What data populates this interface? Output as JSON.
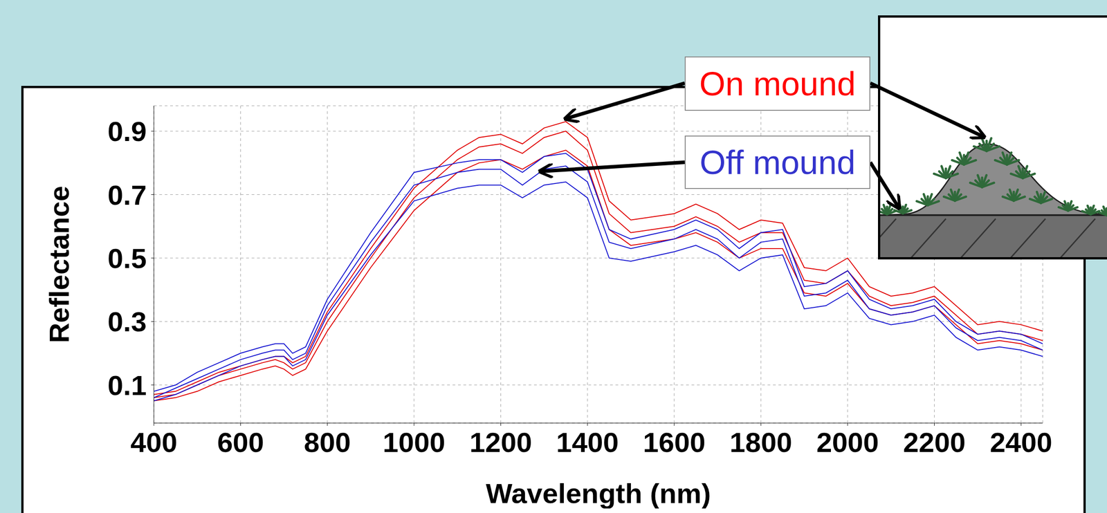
{
  "chart_data": {
    "type": "line",
    "xlabel": "Wavelength (nm)",
    "ylabel": "Reflectance",
    "x": [
      400,
      450,
      500,
      550,
      600,
      650,
      680,
      700,
      720,
      750,
      800,
      900,
      1000,
      1100,
      1150,
      1200,
      1250,
      1300,
      1350,
      1400,
      1450,
      1500,
      1600,
      1650,
      1700,
      1750,
      1800,
      1850,
      1900,
      1950,
      2000,
      2050,
      2100,
      2150,
      2200,
      2250,
      2300,
      2350,
      2400,
      2450
    ],
    "series": [
      {
        "name": "On mound",
        "color": "#e00000",
        "values": [
          0.07,
          0.08,
          0.11,
          0.14,
          0.16,
          0.18,
          0.19,
          0.19,
          0.17,
          0.19,
          0.33,
          0.53,
          0.72,
          0.84,
          0.88,
          0.89,
          0.86,
          0.91,
          0.93,
          0.88,
          0.68,
          0.62,
          0.64,
          0.67,
          0.64,
          0.59,
          0.62,
          0.61,
          0.47,
          0.46,
          0.5,
          0.41,
          0.38,
          0.39,
          0.41,
          0.35,
          0.29,
          0.3,
          0.29,
          0.27
        ]
      },
      {
        "name": "On mound",
        "color": "#e00000",
        "values": [
          0.06,
          0.07,
          0.1,
          0.13,
          0.15,
          0.17,
          0.18,
          0.17,
          0.15,
          0.17,
          0.3,
          0.5,
          0.69,
          0.81,
          0.85,
          0.86,
          0.83,
          0.88,
          0.9,
          0.84,
          0.64,
          0.58,
          0.6,
          0.63,
          0.6,
          0.55,
          0.58,
          0.58,
          0.43,
          0.42,
          0.46,
          0.38,
          0.35,
          0.36,
          0.38,
          0.32,
          0.26,
          0.27,
          0.26,
          0.24
        ]
      },
      {
        "name": "On mound",
        "color": "#e00000",
        "values": [
          0.05,
          0.06,
          0.08,
          0.11,
          0.13,
          0.15,
          0.16,
          0.15,
          0.13,
          0.15,
          0.27,
          0.47,
          0.65,
          0.77,
          0.8,
          0.81,
          0.78,
          0.82,
          0.84,
          0.79,
          0.59,
          0.54,
          0.56,
          0.58,
          0.55,
          0.5,
          0.53,
          0.53,
          0.39,
          0.38,
          0.42,
          0.34,
          0.32,
          0.33,
          0.35,
          0.29,
          0.23,
          0.24,
          0.23,
          0.21
        ]
      },
      {
        "name": "Off mound",
        "color": "#1414d0",
        "values": [
          0.08,
          0.1,
          0.14,
          0.17,
          0.2,
          0.22,
          0.23,
          0.23,
          0.2,
          0.22,
          0.37,
          0.58,
          0.77,
          0.8,
          0.81,
          0.81,
          0.77,
          0.82,
          0.83,
          0.78,
          0.59,
          0.56,
          0.59,
          0.62,
          0.59,
          0.53,
          0.58,
          0.59,
          0.41,
          0.42,
          0.46,
          0.37,
          0.34,
          0.35,
          0.37,
          0.3,
          0.26,
          0.27,
          0.26,
          0.23
        ]
      },
      {
        "name": "Off mound",
        "color": "#1414d0",
        "values": [
          0.06,
          0.09,
          0.12,
          0.15,
          0.18,
          0.2,
          0.21,
          0.21,
          0.18,
          0.2,
          0.35,
          0.55,
          0.73,
          0.77,
          0.78,
          0.78,
          0.73,
          0.78,
          0.79,
          0.74,
          0.55,
          0.53,
          0.56,
          0.59,
          0.56,
          0.5,
          0.55,
          0.56,
          0.38,
          0.39,
          0.43,
          0.34,
          0.32,
          0.33,
          0.35,
          0.28,
          0.24,
          0.25,
          0.24,
          0.21
        ]
      },
      {
        "name": "Off mound",
        "color": "#1414d0",
        "values": [
          0.05,
          0.07,
          0.1,
          0.13,
          0.16,
          0.18,
          0.19,
          0.19,
          0.16,
          0.18,
          0.32,
          0.51,
          0.68,
          0.72,
          0.73,
          0.73,
          0.69,
          0.73,
          0.74,
          0.69,
          0.5,
          0.49,
          0.52,
          0.54,
          0.51,
          0.46,
          0.5,
          0.51,
          0.34,
          0.35,
          0.39,
          0.31,
          0.29,
          0.3,
          0.32,
          0.25,
          0.21,
          0.22,
          0.21,
          0.19
        ]
      }
    ],
    "xlim": [
      400,
      2450
    ],
    "xticks": [
      400,
      600,
      800,
      1000,
      1200,
      1400,
      1600,
      1800,
      2000,
      2200,
      2400
    ],
    "ylim": [
      -0.02,
      0.98
    ],
    "yticks": [
      0.1,
      0.3,
      0.5,
      0.7,
      0.9
    ],
    "grid": true,
    "annotations": [
      {
        "text": "On mound",
        "color": "#ff0000"
      },
      {
        "text": "Off mound",
        "color": "#3333cc"
      }
    ]
  }
}
